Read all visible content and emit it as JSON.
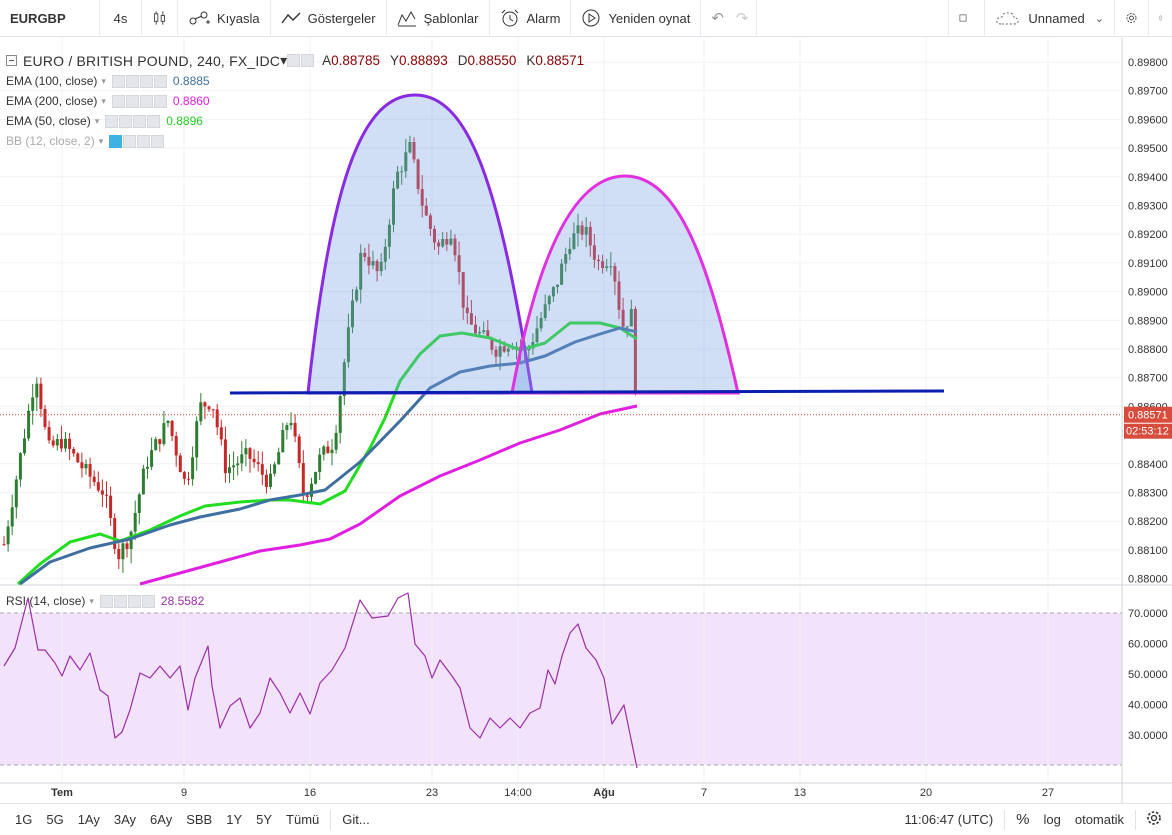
{
  "toolbar": {
    "symbol": "EURGBP",
    "interval": "4s",
    "compare": "Kıyasla",
    "indicators": "Göstergeler",
    "templates": "Şablonlar",
    "alert": "Alarm",
    "replay": "Yeniden oynat",
    "layout_name": "Unnamed"
  },
  "legend": {
    "title": "EURO / BRITISH POUND, 240, FX_IDC",
    "open_label": "A",
    "open": "0.88785",
    "high_label": "Y",
    "high": "0.88893",
    "low_label": "D",
    "low": "0.88550",
    "close_label": "K",
    "close": "0.88571",
    "ema100_label": "EMA (100, close)",
    "ema100_value": "0.8885",
    "ema200_label": "EMA (200, close)",
    "ema200_value": "0.8860",
    "ema50_label": "EMA (50, close)",
    "ema50_value": "0.8896",
    "bb_label": "BB (12, close, 2)",
    "rsi_label": "RSI (14, close)",
    "rsi_value": "28.5582"
  },
  "colors": {
    "ema100": "#3f6f9e",
    "ema200": "#e020e0",
    "ema50": "#22dd22",
    "up": "#2e7d32",
    "down": "#c62828",
    "neckline": "#0a1fb0",
    "arc_left": "#8a2be2",
    "arc_right": "#e030e0",
    "rsi_line": "#9a2fa8",
    "rsi_band": "#f3e2fb",
    "price_tag": "#d84c3e"
  },
  "price_axis": [
    "0.89800",
    "0.89700",
    "0.89600",
    "0.89500",
    "0.89400",
    "0.89300",
    "0.89200",
    "0.89100",
    "0.89000",
    "0.88900",
    "0.88800",
    "0.88700",
    "0.88600",
    "0.88400",
    "0.88300",
    "0.88200",
    "0.88100",
    "0.88000"
  ],
  "price_tag": "0.88571",
  "countdown": "02:53:12",
  "rsi_axis": [
    "70.0000",
    "60.0000",
    "50.0000",
    "40.0000",
    "30.0000"
  ],
  "time_axis": [
    "Tem",
    "9",
    "16",
    "23",
    "14:00",
    "Ağu",
    "7",
    "13",
    "20",
    "27"
  ],
  "bottom": {
    "ranges": [
      "1G",
      "5G",
      "1Ay",
      "3Ay",
      "6Ay",
      "SBB",
      "1Y",
      "5Y",
      "Tümü"
    ],
    "goto": "Git...",
    "clock": "11:06:47 (UTC)",
    "percent": "%",
    "log": "log",
    "auto": "otomatik"
  }
}
